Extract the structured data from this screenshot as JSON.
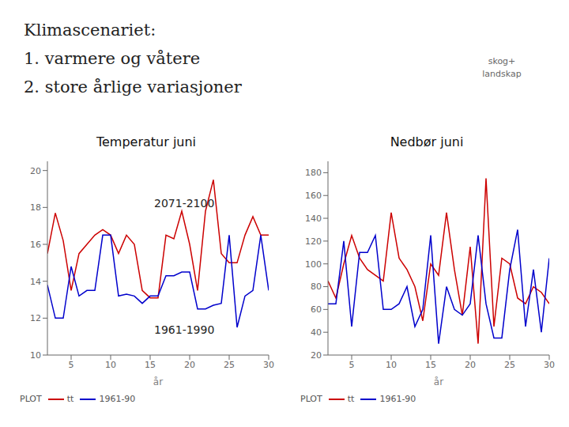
{
  "title": "Klimascenariet:",
  "subtitle": [
    "1. varmere og våtere",
    "2. store årlige variasjoner"
  ],
  "annotations": [
    "skog+",
    "landskap"
  ],
  "chart_data": [
    {
      "type": "line",
      "title": "Temperatur juni",
      "x": [
        2,
        3,
        4,
        5,
        6,
        7,
        8,
        9,
        10,
        11,
        12,
        13,
        14,
        15,
        16,
        17,
        18,
        19,
        20,
        21,
        22,
        23,
        24,
        25,
        26,
        27,
        28,
        29,
        30
      ],
      "series": [
        {
          "name": "tt",
          "color": "#cc0000",
          "values": [
            15.5,
            17.7,
            16.2,
            13.5,
            15.5,
            16.0,
            16.5,
            16.8,
            16.5,
            15.5,
            16.5,
            16.0,
            13.5,
            13.1,
            13.1,
            16.5,
            16.3,
            17.8,
            16.0,
            13.5,
            17.8,
            19.5,
            15.5,
            15.0,
            15.0,
            16.5,
            17.5,
            16.5,
            16.5
          ]
        },
        {
          "name": "1961-90",
          "color": "#0000cc",
          "values": [
            13.8,
            12.0,
            12.0,
            14.8,
            13.2,
            13.5,
            13.5,
            16.5,
            16.5,
            13.2,
            13.3,
            13.2,
            12.8,
            13.2,
            13.2,
            14.3,
            14.3,
            14.5,
            14.5,
            12.5,
            12.5,
            12.7,
            12.8,
            16.5,
            11.5,
            13.2,
            13.5,
            16.5,
            13.5
          ]
        }
      ],
      "xlim": [
        2,
        30
      ],
      "xticks": [
        5,
        10,
        15,
        20,
        25,
        30
      ],
      "ylim": [
        10,
        20.5
      ],
      "yticks": [
        10,
        12,
        14,
        16,
        18,
        20
      ],
      "xlabel": "år",
      "annotations": [
        "2071-2100",
        "1961-1990",
        "PLOT"
      ],
      "legend": "bottom"
    },
    {
      "type": "line",
      "title": "Nedbør juni",
      "x": [
        2,
        3,
        4,
        5,
        6,
        7,
        8,
        9,
        10,
        11,
        12,
        13,
        14,
        15,
        16,
        17,
        18,
        19,
        20,
        21,
        22,
        23,
        24,
        25,
        26,
        27,
        28,
        29,
        30
      ],
      "series": [
        {
          "name": "tt",
          "color": "#cc0000",
          "values": [
            85,
            70,
            100,
            125,
            105,
            95,
            90,
            85,
            145,
            105,
            95,
            80,
            50,
            100,
            90,
            145,
            95,
            55,
            115,
            30,
            175,
            45,
            105,
            100,
            70,
            65,
            80,
            75,
            65
          ]
        },
        {
          "name": "1961-90",
          "color": "#0000cc",
          "values": [
            65,
            65,
            120,
            45,
            110,
            110,
            125,
            60,
            60,
            65,
            80,
            45,
            60,
            125,
            30,
            80,
            60,
            55,
            65,
            125,
            65,
            35,
            35,
            95,
            130,
            45,
            95,
            40,
            105
          ]
        }
      ],
      "xlim": [
        2,
        30
      ],
      "xticks": [
        5,
        10,
        15,
        20,
        25,
        30
      ],
      "ylim": [
        20,
        190
      ],
      "yticks": [
        20,
        40,
        60,
        80,
        100,
        120,
        140,
        160,
        180
      ],
      "xlabel": "år",
      "annotations": [
        "PLOT"
      ],
      "legend": "bottom"
    }
  ]
}
